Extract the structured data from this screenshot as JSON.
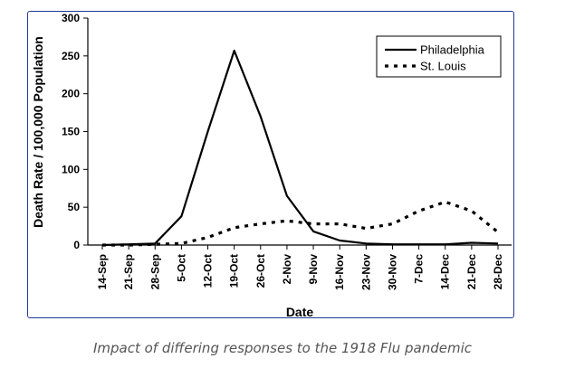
{
  "caption": "Impact of differing responses to the 1918 Flu pandemic",
  "chart_data": {
    "type": "line",
    "title": "",
    "xlabel": "Date",
    "ylabel": "Death Rate / 100,000 Population",
    "ylim": [
      0,
      300
    ],
    "yticks": [
      0,
      50,
      100,
      150,
      200,
      250,
      300
    ],
    "categories": [
      "14-Sep",
      "21-Sep",
      "28-Sep",
      "5-Oct",
      "12-Oct",
      "19-Oct",
      "26-Oct",
      "2-Nov",
      "9-Nov",
      "16-Nov",
      "23-Nov",
      "30-Nov",
      "7-Dec",
      "14-Dec",
      "21-Dec",
      "28-Dec"
    ],
    "series": [
      {
        "name": "Philadelphia",
        "style": "solid",
        "values": [
          0,
          1,
          2,
          38,
          150,
          257,
          170,
          65,
          18,
          6,
          2,
          1,
          1,
          1,
          3,
          2
        ]
      },
      {
        "name": "St. Louis",
        "style": "dotted",
        "values": [
          0,
          0,
          1,
          2,
          10,
          23,
          28,
          32,
          28,
          28,
          22,
          28,
          45,
          57,
          45,
          17
        ]
      }
    ],
    "legend_position": "top-right",
    "grid": false
  }
}
